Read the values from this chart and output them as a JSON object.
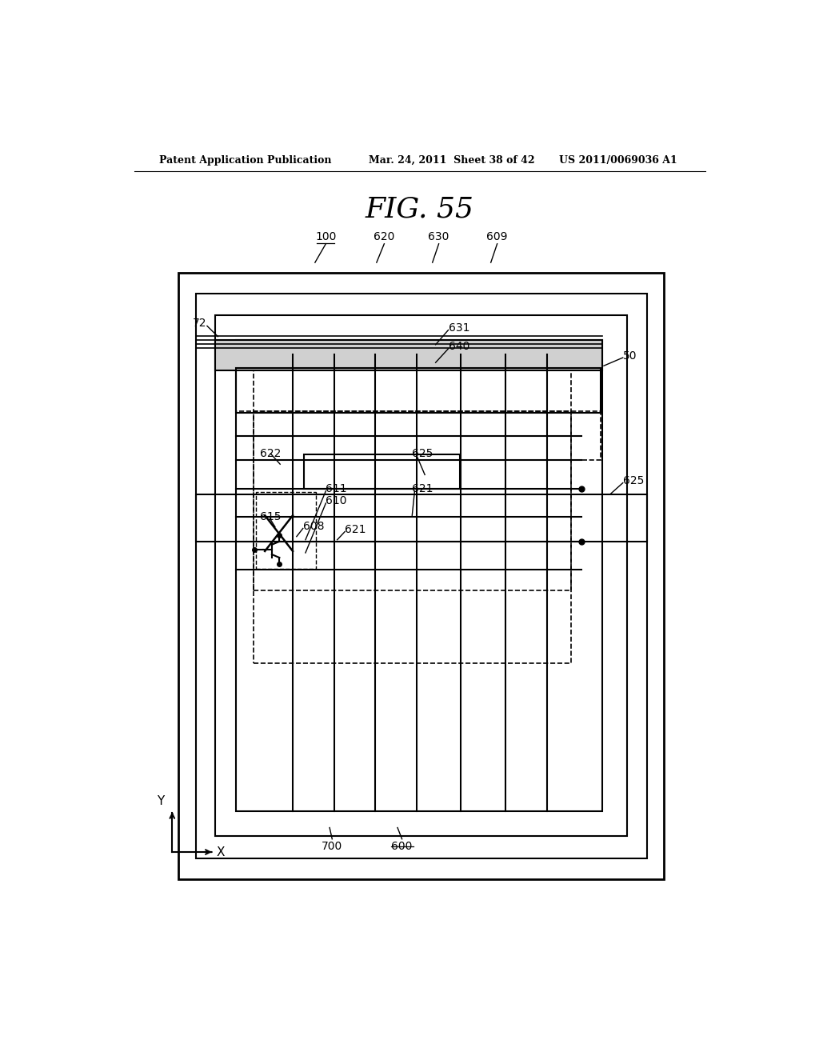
{
  "title": "FIG. 55",
  "header_left": "Patent Application Publication",
  "header_mid": "Mar. 24, 2011  Sheet 38 of 42",
  "header_right": "US 2011/0069036 A1",
  "bg_color": "#ffffff",
  "line_color": "#000000"
}
